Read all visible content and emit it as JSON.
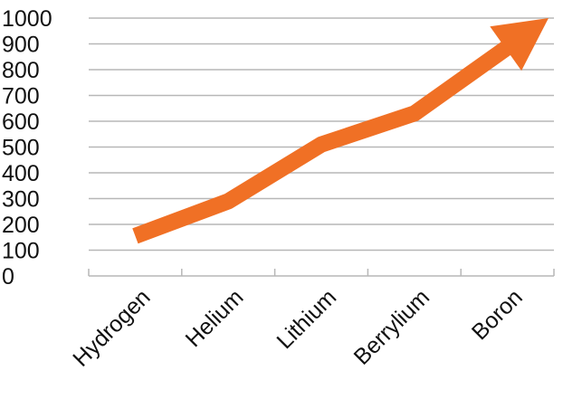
{
  "chart_data": {
    "type": "line",
    "categories": [
      "Hydrogen",
      "Helium",
      "Lithium",
      "Berrylium",
      "Boron"
    ],
    "series": [
      {
        "values": [
          155,
          290,
          510,
          630,
          1000
        ]
      }
    ],
    "xlabel": "",
    "ylabel": "",
    "ylim": [
      0,
      1000
    ],
    "yticks": [
      "0",
      "100",
      "200",
      "300",
      "400",
      "500",
      "600",
      "700",
      "800",
      "900",
      "1000"
    ],
    "grid": true,
    "legend": "none",
    "line_color": "#F07025",
    "grid_color": "#B7B7B7"
  }
}
